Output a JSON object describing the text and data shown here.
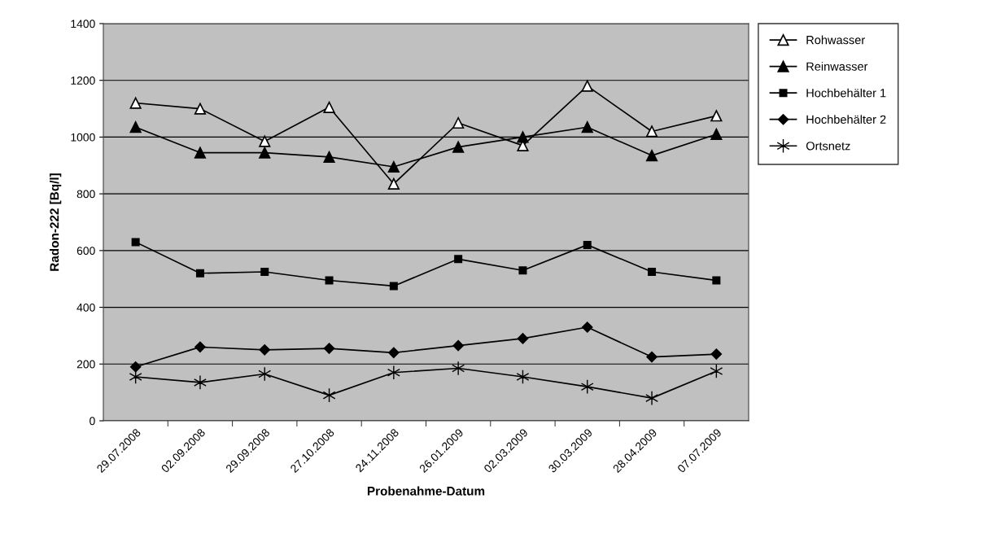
{
  "chart_data": {
    "type": "line",
    "xlabel": "Probenahme-Datum",
    "ylabel": "Radon-222 [Bq/l]",
    "categories": [
      "29.07.2008",
      "02.09.2008",
      "29.09.2008",
      "27.10.2008",
      "24.11.2008",
      "26.01.2009",
      "02.03.2009",
      "30.03.2009",
      "28.04.2009",
      "07.07.2009"
    ],
    "series": [
      {
        "name": "Rohwasser",
        "color": "#ffffff",
        "marker": "triangle",
        "values": [
          1120,
          1100,
          985,
          1105,
          835,
          1050,
          970,
          1180,
          1020,
          1075
        ]
      },
      {
        "name": "Reinwasser",
        "color": "#000000",
        "marker": "triangle",
        "values": [
          1035,
          945,
          945,
          930,
          895,
          965,
          1000,
          1035,
          935,
          1010
        ]
      },
      {
        "name": "Hochbehälter 1",
        "color": "#000000",
        "marker": "square",
        "values": [
          630,
          520,
          525,
          495,
          475,
          570,
          530,
          620,
          525,
          495
        ]
      },
      {
        "name": "Hochbehälter 2",
        "color": "#000000",
        "marker": "diamond",
        "values": [
          190,
          260,
          250,
          255,
          240,
          265,
          290,
          330,
          225,
          235
        ]
      },
      {
        "name": "Ortsnetz",
        "color": "#000000",
        "marker": "cross",
        "values": [
          155,
          135,
          165,
          90,
          170,
          185,
          155,
          120,
          80,
          175
        ]
      }
    ],
    "ylim": [
      0,
      1400
    ],
    "yticks": [
      0,
      200,
      400,
      600,
      800,
      1000,
      1200,
      1400
    ],
    "grid": "y",
    "legend": "right",
    "line_style": "solid"
  }
}
